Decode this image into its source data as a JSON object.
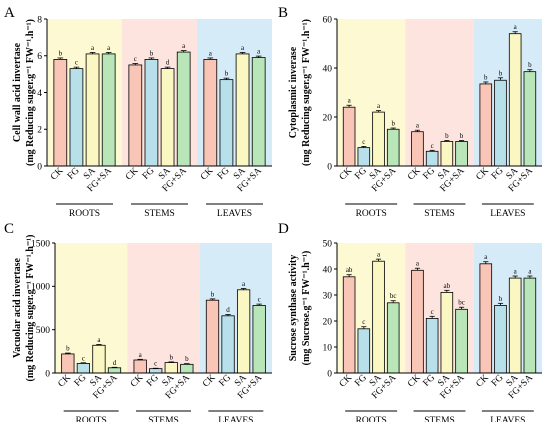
{
  "colors": {
    "bg_roots": "#fdf9d3",
    "bg_stems": "#fde4df",
    "bg_leaves": "#d6ebf8",
    "bar_CK": "#f9c5b6",
    "bar_FG": "#b8e0ea",
    "bar_SA": "#fbf7c2",
    "bar_FGSA": "#b9e6b9"
  },
  "chart_data": [
    {
      "type": "bar",
      "panel": "A",
      "ylabel": "Cell wall acid invertase",
      "ylabel2": "(mg Reducing suger.g⁻¹ FW⁻¹.h⁻¹)",
      "ylim": [
        0,
        8
      ],
      "yticks": [
        0,
        2,
        4,
        6,
        8
      ],
      "groups": [
        "ROOTS",
        "STEMS",
        "LEAVES"
      ],
      "categories": [
        "CK",
        "FG",
        "SA",
        "FG+SA"
      ],
      "values": [
        [
          5.8,
          5.3,
          6.1,
          6.1
        ],
        [
          5.5,
          5.8,
          5.3,
          6.2
        ],
        [
          5.8,
          4.7,
          6.1,
          5.9
        ]
      ],
      "errors": [
        [
          0.08,
          0.08,
          0.08,
          0.08
        ],
        [
          0.08,
          0.08,
          0.08,
          0.08
        ],
        [
          0.08,
          0.08,
          0.08,
          0.08
        ]
      ],
      "letters": [
        [
          "b",
          "c",
          "a",
          "a"
        ],
        [
          "c",
          "b",
          "d",
          "a"
        ],
        [
          "a",
          "b",
          "a",
          "a"
        ]
      ],
      "grid": false
    },
    {
      "type": "bar",
      "panel": "B",
      "ylabel": "Cytoplasmic inverase",
      "ylabel2": "(mg Reducing suger.g⁻¹ FW⁻¹.h⁻¹)",
      "ylim": [
        0,
        60
      ],
      "yticks": [
        0,
        20,
        40,
        60
      ],
      "groups": [
        "ROOTS",
        "STEMS",
        "LEAVES"
      ],
      "categories": [
        "CK",
        "FG",
        "SA",
        "FG+SA"
      ],
      "values": [
        [
          24,
          7.5,
          22,
          15
        ],
        [
          14,
          6,
          10,
          10
        ],
        [
          33.5,
          35,
          54,
          38.5
        ]
      ],
      "errors": [
        [
          0.8,
          0.5,
          0.6,
          0.5
        ],
        [
          0.6,
          0.4,
          0.4,
          0.4
        ],
        [
          0.8,
          1.0,
          0.8,
          0.8
        ]
      ],
      "letters": [
        [
          "a",
          "c",
          "a",
          "b"
        ],
        [
          "a",
          "c",
          "b",
          "b"
        ],
        [
          "b",
          "b",
          "a",
          "b"
        ]
      ],
      "grid": false
    },
    {
      "type": "bar",
      "panel": "C",
      "ylabel": "Vacuolar acid invertase",
      "ylabel2": "(mg Reducing suger.g⁻¹ FW⁻¹.h⁻¹)",
      "ylim": [
        0,
        1500
      ],
      "yticks": [
        0,
        500,
        1000,
        1500
      ],
      "groups": [
        "ROOTS",
        "STEMS",
        "LEAVES"
      ],
      "categories": [
        "CK",
        "FG",
        "SA",
        "FG+SA"
      ],
      "values": [
        [
          220,
          110,
          320,
          60
        ],
        [
          150,
          50,
          120,
          100
        ],
        [
          840,
          660,
          960,
          780
        ]
      ],
      "errors": [
        [
          10,
          8,
          10,
          6
        ],
        [
          8,
          5,
          8,
          8
        ],
        [
          15,
          15,
          15,
          15
        ]
      ],
      "letters": [
        [
          "b",
          "c",
          "a",
          "d"
        ],
        [
          "a",
          "c",
          "b",
          "b"
        ],
        [
          "b",
          "d",
          "a",
          "c"
        ]
      ],
      "grid": false
    },
    {
      "type": "bar",
      "panel": "D",
      "ylabel": "Sucrose synthase activity",
      "ylabel2": "(mg Sucrose.g⁻¹ FW⁻¹.h⁻¹)",
      "ylim": [
        0,
        50
      ],
      "yticks": [
        0,
        10,
        20,
        30,
        40,
        50
      ],
      "groups": [
        "ROOTS",
        "STEMS",
        "LEAVES"
      ],
      "categories": [
        "CK",
        "FG",
        "SA",
        "FG+SA"
      ],
      "values": [
        [
          37,
          17,
          43,
          27
        ],
        [
          39.5,
          21,
          31,
          24.5
        ],
        [
          42,
          26,
          36.5,
          36.5
        ]
      ],
      "errors": [
        [
          0.8,
          0.8,
          0.8,
          0.8
        ],
        [
          0.8,
          0.8,
          0.8,
          0.8
        ],
        [
          0.8,
          0.8,
          0.8,
          0.8
        ]
      ],
      "letters": [
        [
          "ab",
          "c",
          "a",
          "bc"
        ],
        [
          "a",
          "c",
          "ab",
          "bc"
        ],
        [
          "a",
          "b",
          "a",
          "a"
        ]
      ],
      "grid": false
    }
  ]
}
